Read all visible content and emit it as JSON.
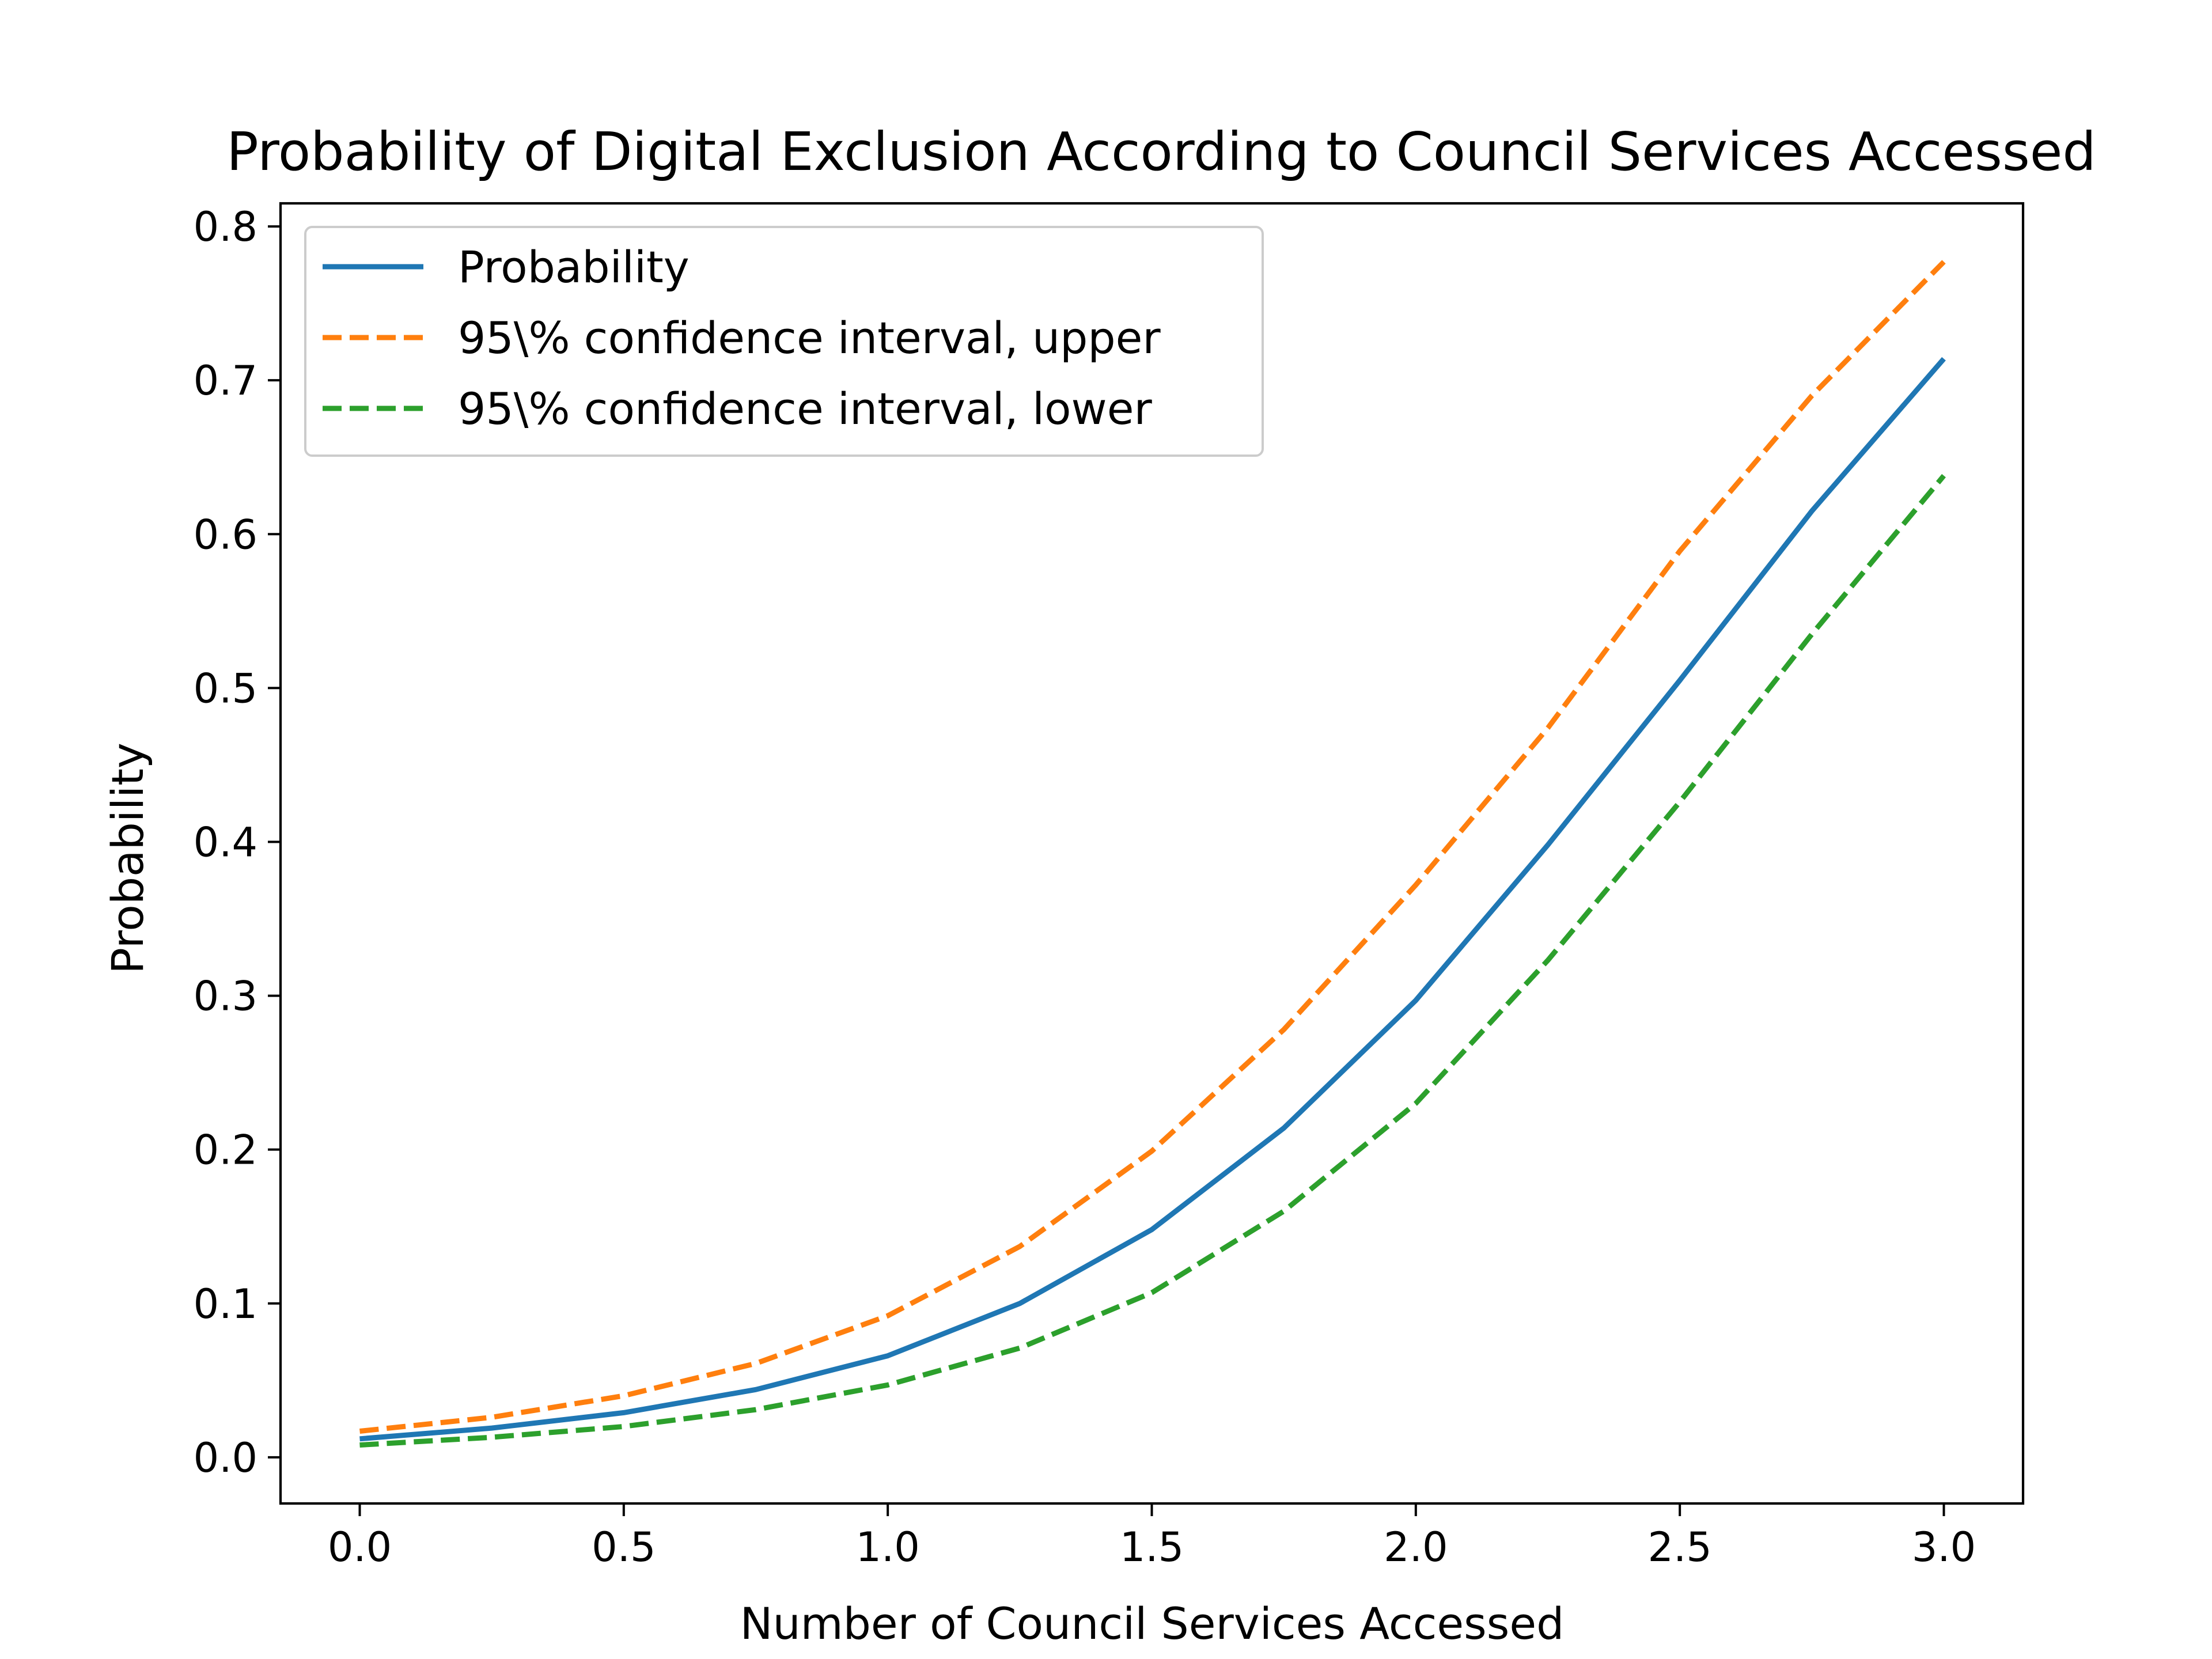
{
  "chart_data": {
    "type": "line",
    "title": "Probability of Digital Exclusion According to Council Services Accessed",
    "xlabel": "Number of Council Services Accessed",
    "ylabel": "Probability",
    "xlim": [
      -0.15,
      3.15
    ],
    "ylim": [
      -0.03,
      0.815
    ],
    "xticks": [
      0.0,
      0.5,
      1.0,
      1.5,
      2.0,
      2.5,
      3.0
    ],
    "xtick_labels": [
      "0.0",
      "0.5",
      "1.0",
      "1.5",
      "2.0",
      "2.5",
      "3.0"
    ],
    "yticks": [
      0.0,
      0.1,
      0.2,
      0.3,
      0.4,
      0.5,
      0.6,
      0.7,
      0.8
    ],
    "ytick_labels": [
      "0.0",
      "0.1",
      "0.2",
      "0.3",
      "0.4",
      "0.5",
      "0.6",
      "0.7",
      "0.8"
    ],
    "grid": false,
    "legend_position": "top-left",
    "x": [
      0.0,
      0.25,
      0.5,
      0.75,
      1.0,
      1.25,
      1.5,
      1.75,
      2.0,
      2.25,
      2.5,
      2.75,
      3.0
    ],
    "series": [
      {
        "name": "Probability",
        "style": "solid",
        "color": "#1f77b4",
        "values": [
          0.012,
          0.019,
          0.029,
          0.044,
          0.066,
          0.1,
          0.148,
          0.214,
          0.297,
          0.398,
          0.505,
          0.615,
          0.714
        ]
      },
      {
        "name": "95\\% confidence interval, upper",
        "style": "dashed",
        "color": "#ff7f0e",
        "values": [
          0.017,
          0.026,
          0.04,
          0.061,
          0.092,
          0.137,
          0.199,
          0.278,
          0.372,
          0.474,
          0.589,
          0.69,
          0.777
        ]
      },
      {
        "name": "95\\% confidence interval, lower",
        "style": "dashed",
        "color": "#2ca02c",
        "values": [
          0.008,
          0.013,
          0.02,
          0.031,
          0.047,
          0.071,
          0.107,
          0.16,
          0.23,
          0.323,
          0.426,
          0.535,
          0.638
        ]
      }
    ]
  }
}
